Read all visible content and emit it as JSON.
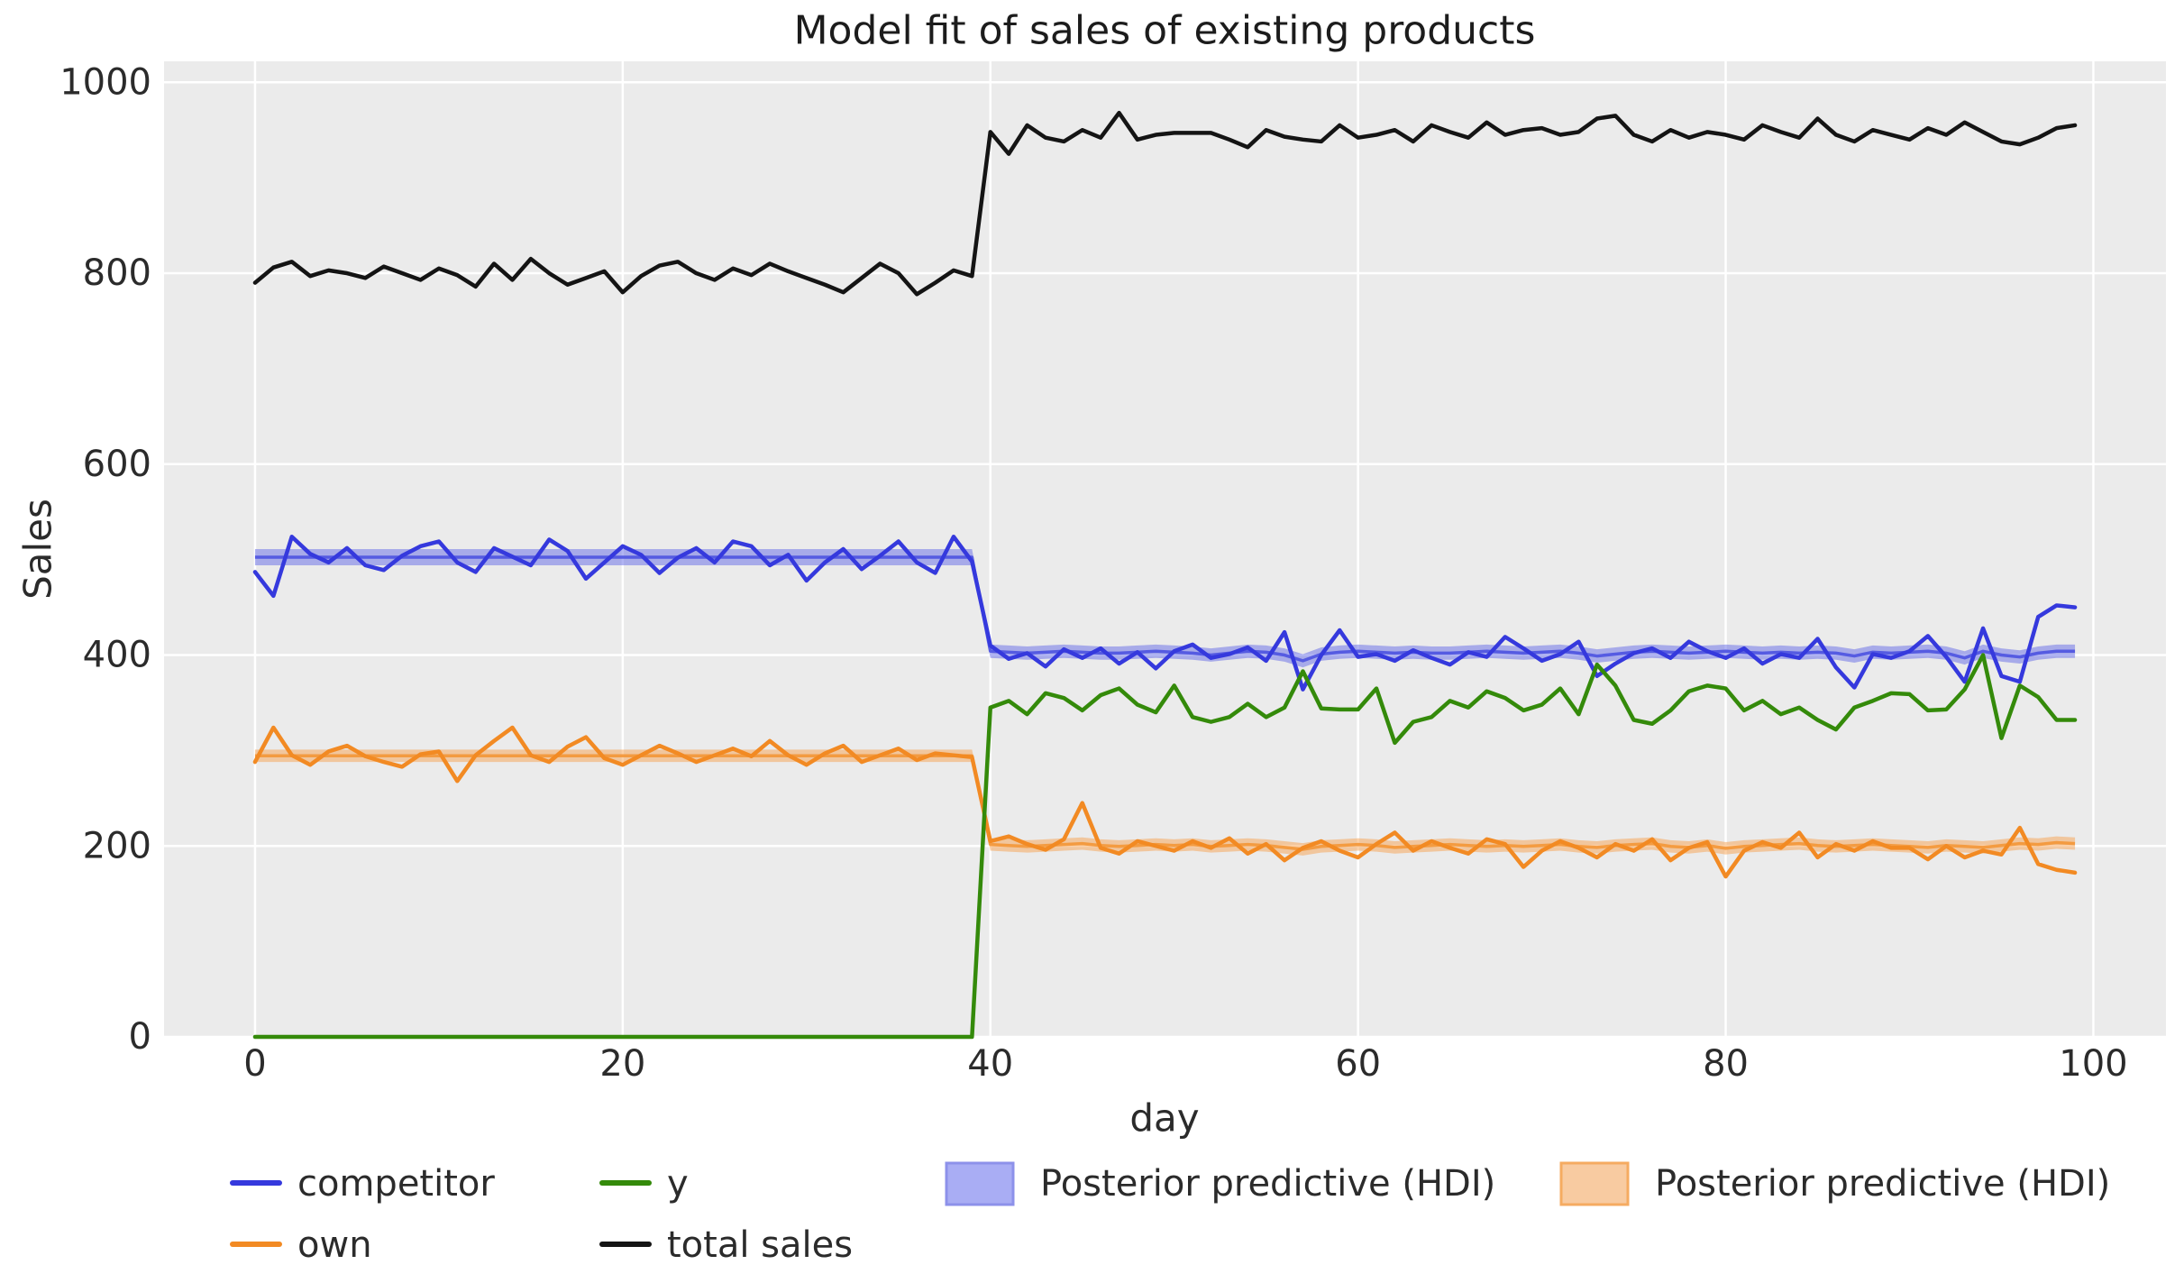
{
  "title": "Model fit of sales of existing products",
  "axes": {
    "xlabel": "day",
    "ylabel": "Sales",
    "x_ticks": [
      0,
      20,
      40,
      60,
      80,
      100
    ],
    "y_ticks": [
      0,
      200,
      400,
      600,
      800,
      1000
    ]
  },
  "colors": {
    "figure_bg": "#ffffff",
    "plot_bg": "#ebebeb",
    "grid": "#ffffff",
    "text": "#2b2b2b",
    "competitor_line": "#3539dd",
    "own_line": "#f28a23",
    "y_line": "#348a0a",
    "total_line": "#141414",
    "blue_band_fill": "rgba(100,105,232,0.5)",
    "blue_band_mean": "rgba(77,82,224,0.9)",
    "orange_band_fill": "rgba(247,162,79,0.5)",
    "orange_band_mean": "rgba(243,150,55,0.9)"
  },
  "legend": {
    "items": [
      {
        "label": "competitor",
        "swatch": "line",
        "color": "#3539dd"
      },
      {
        "label": "own",
        "swatch": "line",
        "color": "#f28a23"
      },
      {
        "label": "y",
        "swatch": "line",
        "color": "#348a0a"
      },
      {
        "label": "total sales",
        "swatch": "line",
        "color": "#141414"
      },
      {
        "label": "Posterior predictive (HDI)",
        "swatch": "patch",
        "fill": "#a9adf4",
        "edge": "#8d91ea"
      },
      {
        "label": "Posterior predictive (HDI)",
        "swatch": "patch",
        "fill": "#f8cba1",
        "edge": "#f5ab61"
      }
    ]
  },
  "chart_data": {
    "type": "line",
    "title": "Model fit of sales of existing products",
    "xlabel": "day",
    "ylabel": "Sales",
    "xlim": [
      -4.95,
      103.95
    ],
    "ylim": [
      0,
      1022
    ],
    "grid": true,
    "legend_position": "below",
    "x": [
      0,
      1,
      2,
      3,
      4,
      5,
      6,
      7,
      8,
      9,
      10,
      11,
      12,
      13,
      14,
      15,
      16,
      17,
      18,
      19,
      20,
      21,
      22,
      23,
      24,
      25,
      26,
      27,
      28,
      29,
      30,
      31,
      32,
      33,
      34,
      35,
      36,
      37,
      38,
      39,
      40,
      41,
      42,
      43,
      44,
      45,
      46,
      47,
      48,
      49,
      50,
      51,
      52,
      53,
      54,
      55,
      56,
      57,
      58,
      59,
      60,
      61,
      62,
      63,
      64,
      65,
      66,
      67,
      68,
      69,
      70,
      71,
      72,
      73,
      74,
      75,
      76,
      77,
      78,
      79,
      80,
      81,
      82,
      83,
      84,
      85,
      86,
      87,
      88,
      89,
      90,
      91,
      92,
      93,
      94,
      95,
      96,
      97,
      98,
      99
    ],
    "series": [
      {
        "name": "competitor",
        "color": "#3539dd",
        "values": [
          487,
          462,
          524,
          506,
          497,
          512,
          494,
          489,
          504,
          514,
          519,
          497,
          487,
          512,
          503,
          494,
          521,
          509,
          480,
          497,
          514,
          505,
          486,
          502,
          512,
          497,
          519,
          514,
          494,
          505,
          478,
          497,
          511,
          490,
          504,
          519,
          497,
          486,
          524,
          498,
          410,
          396,
          402,
          388,
          406,
          397,
          407,
          391,
          403,
          386,
          404,
          411,
          397,
          401,
          408,
          394,
          424,
          364,
          400,
          426,
          398,
          401,
          394,
          405,
          397,
          390,
          403,
          398,
          419,
          407,
          394,
          401,
          414,
          378,
          391,
          402,
          407,
          397,
          414,
          404,
          397,
          407,
          391,
          401,
          397,
          417,
          387,
          366,
          401,
          397,
          404,
          420,
          398,
          372,
          428,
          378,
          372,
          440,
          452,
          450
        ]
      },
      {
        "name": "own",
        "color": "#f28a23",
        "values": [
          288,
          324,
          295,
          285,
          299,
          305,
          294,
          288,
          283,
          296,
          299,
          268,
          295,
          310,
          324,
          295,
          288,
          304,
          314,
          292,
          285,
          295,
          305,
          297,
          288,
          295,
          302,
          294,
          310,
          295,
          285,
          297,
          305,
          288,
          295,
          302,
          290,
          297,
          295,
          293,
          205,
          210,
          202,
          196,
          207,
          245,
          198,
          192,
          205,
          200,
          195,
          205,
          198,
          208,
          192,
          202,
          185,
          198,
          205,
          195,
          188,
          202,
          214,
          195,
          205,
          198,
          192,
          207,
          202,
          178,
          195,
          205,
          198,
          188,
          202,
          195,
          207,
          185,
          198,
          204,
          168,
          195,
          204,
          198,
          214,
          188,
          202,
          195,
          205,
          198,
          198,
          186,
          200,
          188,
          195,
          191,
          219,
          181,
          175,
          172
        ]
      },
      {
        "name": "y",
        "color": "#348a0a",
        "values": [
          0,
          0,
          0,
          0,
          0,
          0,
          0,
          0,
          0,
          0,
          0,
          0,
          0,
          0,
          0,
          0,
          0,
          0,
          0,
          0,
          0,
          0,
          0,
          0,
          0,
          0,
          0,
          0,
          0,
          0,
          0,
          0,
          0,
          0,
          0,
          0,
          0,
          0,
          0,
          0,
          345,
          352,
          338,
          360,
          355,
          342,
          358,
          365,
          348,
          340,
          368,
          335,
          330,
          335,
          349,
          335,
          345,
          383,
          344,
          343,
          343,
          365,
          308,
          330,
          335,
          352,
          345,
          362,
          355,
          342,
          348,
          365,
          338,
          390,
          368,
          332,
          328,
          342,
          362,
          368,
          365,
          342,
          352,
          338,
          345,
          332,
          322,
          345,
          352,
          360,
          359,
          342,
          343,
          364,
          400,
          313,
          368,
          356,
          332,
          332
        ]
      },
      {
        "name": "total sales",
        "color": "#141414",
        "values": [
          790,
          806,
          812,
          797,
          803,
          800,
          795,
          807,
          800,
          793,
          805,
          798,
          786,
          810,
          793,
          815,
          800,
          788,
          795,
          802,
          780,
          797,
          808,
          812,
          800,
          793,
          805,
          798,
          810,
          802,
          795,
          788,
          780,
          795,
          810,
          800,
          778,
          790,
          803,
          797,
          948,
          925,
          955,
          942,
          938,
          950,
          942,
          968,
          940,
          945,
          947,
          947,
          947,
          940,
          932,
          950,
          943,
          940,
          938,
          955,
          942,
          945,
          950,
          938,
          955,
          948,
          942,
          958,
          945,
          950,
          952,
          945,
          948,
          962,
          965,
          945,
          938,
          950,
          942,
          948,
          945,
          940,
          955,
          948,
          942,
          962,
          945,
          938,
          950,
          945,
          940,
          952,
          945,
          958,
          948,
          938,
          935,
          942,
          952,
          955
        ]
      }
    ],
    "bands": [
      {
        "name": "Posterior predictive (HDI)",
        "series_ref": "competitor",
        "fill": "rgba(100,105,232,0.5)",
        "mean_color": "rgba(77,82,224,0.9)",
        "lower": [
          494,
          494,
          494,
          494,
          494,
          494,
          494,
          494,
          494,
          494,
          494,
          494,
          494,
          494,
          494,
          494,
          494,
          494,
          494,
          494,
          494,
          494,
          494,
          494,
          494,
          494,
          494,
          494,
          494,
          494,
          494,
          494,
          494,
          494,
          494,
          494,
          494,
          494,
          494,
          494,
          397,
          396,
          395,
          396,
          397,
          396,
          395,
          395,
          396,
          397,
          396,
          395,
          393,
          395,
          397,
          396,
          393,
          387,
          394,
          396,
          397,
          396,
          395,
          396,
          395,
          395,
          396,
          397,
          396,
          395,
          396,
          397,
          395,
          392,
          394,
          396,
          397,
          396,
          395,
          396,
          397,
          396,
          395,
          396,
          395,
          396,
          395,
          392,
          396,
          395,
          396,
          397,
          395,
          390,
          397,
          393,
          391,
          395,
          397,
          397
        ],
        "upper": [
          511,
          511,
          511,
          511,
          511,
          511,
          511,
          511,
          511,
          511,
          511,
          511,
          511,
          511,
          511,
          511,
          511,
          511,
          511,
          511,
          511,
          511,
          511,
          511,
          511,
          511,
          511,
          511,
          511,
          511,
          511,
          511,
          511,
          511,
          511,
          511,
          511,
          511,
          511,
          511,
          411,
          410,
          409,
          410,
          411,
          410,
          409,
          409,
          410,
          411,
          410,
          409,
          407,
          409,
          411,
          410,
          407,
          401,
          408,
          410,
          411,
          410,
          409,
          410,
          409,
          409,
          410,
          411,
          410,
          409,
          410,
          411,
          409,
          406,
          408,
          410,
          411,
          410,
          409,
          410,
          411,
          410,
          409,
          410,
          409,
          410,
          409,
          406,
          410,
          409,
          410,
          411,
          409,
          404,
          411,
          407,
          405,
          409,
          411,
          411
        ]
      },
      {
        "name": "Posterior predictive (HDI)",
        "series_ref": "own",
        "fill": "rgba(247,162,79,0.5)",
        "mean_color": "rgba(243,150,55,0.9)",
        "lower": [
          288,
          288,
          288,
          288,
          288,
          288,
          288,
          288,
          288,
          288,
          288,
          288,
          288,
          288,
          288,
          288,
          288,
          288,
          288,
          288,
          288,
          288,
          288,
          288,
          288,
          288,
          288,
          288,
          288,
          288,
          288,
          288,
          288,
          288,
          288,
          288,
          288,
          288,
          288,
          288,
          195,
          194,
          193,
          194,
          195,
          196,
          194,
          193,
          194,
          195,
          194,
          195,
          193,
          194,
          195,
          194,
          192,
          190,
          193,
          194,
          195,
          194,
          192,
          193,
          194,
          195,
          194,
          193,
          194,
          193,
          194,
          195,
          193,
          192,
          194,
          195,
          196,
          193,
          192,
          194,
          191,
          193,
          194,
          195,
          196,
          194,
          193,
          194,
          195,
          194,
          193,
          192,
          194,
          193,
          192,
          194,
          196,
          195,
          197,
          196
        ],
        "upper": [
          301,
          301,
          301,
          301,
          301,
          301,
          301,
          301,
          301,
          301,
          301,
          301,
          301,
          301,
          301,
          301,
          301,
          301,
          301,
          301,
          301,
          301,
          301,
          301,
          301,
          301,
          301,
          301,
          301,
          301,
          301,
          301,
          301,
          301,
          301,
          301,
          301,
          301,
          301,
          301,
          208,
          207,
          206,
          207,
          208,
          209,
          207,
          206,
          207,
          208,
          207,
          208,
          206,
          207,
          208,
          207,
          205,
          203,
          206,
          207,
          208,
          207,
          205,
          206,
          207,
          208,
          207,
          206,
          207,
          206,
          207,
          208,
          206,
          205,
          207,
          208,
          209,
          206,
          205,
          207,
          204,
          206,
          207,
          208,
          209,
          207,
          206,
          207,
          208,
          207,
          206,
          205,
          207,
          206,
          205,
          207,
          209,
          208,
          210,
          209
        ]
      }
    ]
  }
}
